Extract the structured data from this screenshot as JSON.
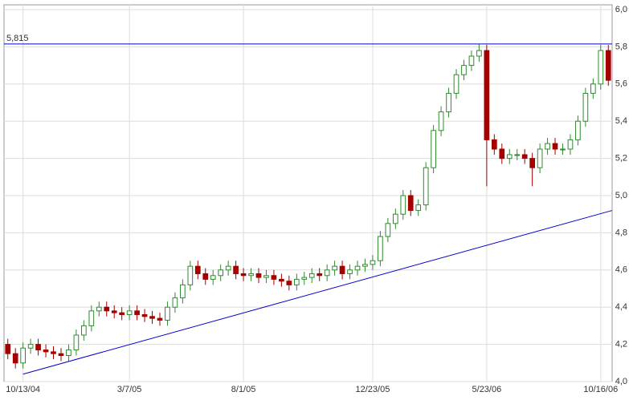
{
  "chart_data": {
    "type": "candlestick",
    "categories": [
      null,
      null,
      "10/13/04",
      null,
      null,
      null,
      null,
      null,
      null,
      null,
      null,
      null,
      null,
      null,
      null,
      null,
      "3/7/05",
      null,
      null,
      null,
      null,
      null,
      null,
      null,
      null,
      null,
      null,
      null,
      null,
      null,
      null,
      "8/1/05",
      null,
      null,
      null,
      null,
      null,
      null,
      null,
      null,
      null,
      null,
      null,
      null,
      null,
      null,
      null,
      null,
      "12/23/05",
      null,
      null,
      null,
      null,
      null,
      null,
      null,
      null,
      null,
      null,
      null,
      null,
      null,
      null,
      "5/23/06",
      null,
      null,
      null,
      null,
      null,
      null,
      null,
      null,
      null,
      null,
      null,
      null,
      null,
      null,
      "10/16/06",
      null
    ],
    "open": [
      4.2,
      4.15,
      4.1,
      4.18,
      4.2,
      4.17,
      4.16,
      4.15,
      4.14,
      4.17,
      4.25,
      4.3,
      4.38,
      4.4,
      4.38,
      4.37,
      4.36,
      4.38,
      4.36,
      4.35,
      4.34,
      4.33,
      4.4,
      4.45,
      4.52,
      4.62,
      4.58,
      4.55,
      4.57,
      4.6,
      4.62,
      4.58,
      4.57,
      4.58,
      4.56,
      4.57,
      4.55,
      4.54,
      4.52,
      4.55,
      4.56,
      4.58,
      4.57,
      4.6,
      4.62,
      4.58,
      4.6,
      4.62,
      4.63,
      4.65,
      4.78,
      4.85,
      4.9,
      5.0,
      4.92,
      4.95,
      5.15,
      5.35,
      5.45,
      5.55,
      5.65,
      5.7,
      5.75,
      5.78,
      5.3,
      5.25,
      5.2,
      5.22,
      5.22,
      5.2,
      5.15,
      5.25,
      5.28,
      5.25,
      5.25,
      5.3,
      5.4,
      5.55,
      5.6,
      5.78
    ],
    "high": [
      4.23,
      4.18,
      4.21,
      4.23,
      4.23,
      4.2,
      4.19,
      4.18,
      4.2,
      4.28,
      4.33,
      4.41,
      4.43,
      4.43,
      4.41,
      4.4,
      4.41,
      4.41,
      4.39,
      4.38,
      4.37,
      4.43,
      4.48,
      4.55,
      4.65,
      4.65,
      4.61,
      4.6,
      4.63,
      4.65,
      4.65,
      4.61,
      4.61,
      4.61,
      4.6,
      4.6,
      4.58,
      4.57,
      4.58,
      4.59,
      4.61,
      4.61,
      4.63,
      4.65,
      4.65,
      4.63,
      4.65,
      4.66,
      4.68,
      4.81,
      4.88,
      4.93,
      5.03,
      5.03,
      4.98,
      5.18,
      5.38,
      5.48,
      5.58,
      5.68,
      5.73,
      5.78,
      5.815,
      5.81,
      5.33,
      5.28,
      5.25,
      5.25,
      5.25,
      5.23,
      5.28,
      5.31,
      5.31,
      5.28,
      5.33,
      5.43,
      5.58,
      5.63,
      5.81,
      5.81
    ],
    "low": [
      4.12,
      4.07,
      4.07,
      4.15,
      4.14,
      4.13,
      4.12,
      4.11,
      4.11,
      4.14,
      4.22,
      4.27,
      4.35,
      4.35,
      4.34,
      4.33,
      4.33,
      4.33,
      4.32,
      4.31,
      4.3,
      4.3,
      4.37,
      4.42,
      4.49,
      4.55,
      4.52,
      4.52,
      4.54,
      4.57,
      4.55,
      4.54,
      4.54,
      4.53,
      4.53,
      4.52,
      4.51,
      4.49,
      4.49,
      4.52,
      4.53,
      4.54,
      4.54,
      4.57,
      4.55,
      4.55,
      4.57,
      4.59,
      4.6,
      4.62,
      4.75,
      4.82,
      4.87,
      4.89,
      4.89,
      4.92,
      5.12,
      5.32,
      5.42,
      5.52,
      5.62,
      5.67,
      5.72,
      5.05,
      5.22,
      5.17,
      5.17,
      5.19,
      5.17,
      5.05,
      5.12,
      5.22,
      5.22,
      5.22,
      5.22,
      5.27,
      5.37,
      5.52,
      5.57,
      5.59
    ],
    "close": [
      4.15,
      4.1,
      4.18,
      4.2,
      4.17,
      4.16,
      4.15,
      4.14,
      4.17,
      4.25,
      4.3,
      4.38,
      4.4,
      4.38,
      4.37,
      4.36,
      4.38,
      4.36,
      4.35,
      4.34,
      4.33,
      4.4,
      4.45,
      4.52,
      4.62,
      4.58,
      4.55,
      4.57,
      4.6,
      4.62,
      4.58,
      4.57,
      4.58,
      4.56,
      4.57,
      4.55,
      4.54,
      4.52,
      4.55,
      4.56,
      4.58,
      4.57,
      4.6,
      4.62,
      4.58,
      4.6,
      4.62,
      4.63,
      4.65,
      4.78,
      4.85,
      4.9,
      5.0,
      4.92,
      4.95,
      5.15,
      5.35,
      5.45,
      5.55,
      5.65,
      5.7,
      5.75,
      5.78,
      5.3,
      5.25,
      5.2,
      5.22,
      5.22,
      5.2,
      5.15,
      5.25,
      5.28,
      5.25,
      5.25,
      5.3,
      5.4,
      5.55,
      5.6,
      5.78,
      5.62
    ],
    "up_color": "#2e8b2e",
    "down_color": "#a50000",
    "resistance": {
      "value": 5.815,
      "label": "5,815",
      "color": "#0000cc"
    },
    "trendline": {
      "values": [
        4.04,
        4.92
      ],
      "color": "#0000cc"
    },
    "ylim": [
      4.0,
      6.0
    ],
    "yticks": [
      {
        "value": 4.0,
        "label": "4,0"
      },
      {
        "value": 4.2,
        "label": "4,2"
      },
      {
        "value": 4.4,
        "label": "4,4"
      },
      {
        "value": 4.6,
        "label": "4,6"
      },
      {
        "value": 4.8,
        "label": "4,8"
      },
      {
        "value": 5.0,
        "label": "5,0"
      },
      {
        "value": 5.2,
        "label": "5,2"
      },
      {
        "value": 5.4,
        "label": "5,4"
      },
      {
        "value": 5.6,
        "label": "5,6"
      },
      {
        "value": 5.8,
        "label": "5,8"
      },
      {
        "value": 6.0,
        "label": "6,0"
      }
    ],
    "grid": true
  }
}
